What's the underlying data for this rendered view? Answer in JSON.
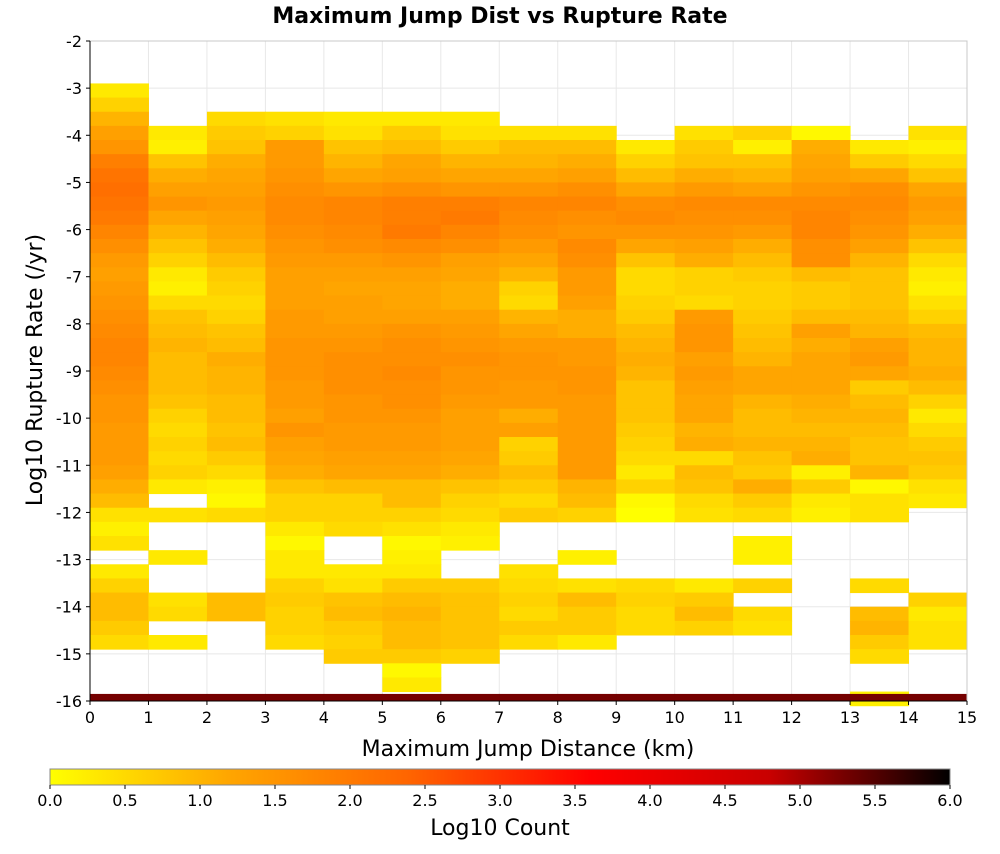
{
  "chart_data": {
    "type": "heatmap",
    "title": "Maximum Jump Dist vs Rupture Rate",
    "xlabel": "Maximum Jump Distance (km)",
    "ylabel": "Log10 Rupture Rate (/yr)",
    "xlim": [
      0,
      15
    ],
    "ylim": [
      -16,
      -2
    ],
    "x_ticks": [
      "0",
      "1",
      "2",
      "3",
      "4",
      "5",
      "6",
      "7",
      "8",
      "9",
      "10",
      "11",
      "12",
      "13",
      "14",
      "15"
    ],
    "y_ticks": [
      "-2",
      "-3",
      "-4",
      "-5",
      "-6",
      "-7",
      "-8",
      "-9",
      "-10",
      "-11",
      "-12",
      "-13",
      "-14",
      "-15",
      "-16"
    ],
    "x_bins": [
      0.5,
      1.5,
      2.5,
      3.5,
      4.5,
      5.5,
      6.5,
      7.5,
      8.5,
      9.5,
      10.5,
      11.5,
      12.5,
      13.5,
      14.5
    ],
    "y_bin_width": 0.3,
    "y_bin_centers": [
      -3.05,
      -3.35,
      -3.65,
      -3.95,
      -4.25,
      -4.55,
      -4.85,
      -5.15,
      -5.45,
      -5.75,
      -6.05,
      -6.35,
      -6.65,
      -6.95,
      -7.25,
      -7.55,
      -7.85,
      -8.15,
      -8.45,
      -8.75,
      -9.05,
      -9.35,
      -9.65,
      -9.95,
      -10.25,
      -10.55,
      -10.85,
      -11.15,
      -11.45,
      -11.75,
      -12.05,
      -12.35,
      -12.65,
      -12.95,
      -13.25,
      -13.55,
      -13.85,
      -14.15,
      -14.45,
      -14.75,
      -15.05,
      -15.35,
      -15.65,
      -15.95
    ],
    "z_log10_count": [
      [
        0.3,
        null,
        null,
        null,
        null,
        null,
        null,
        null,
        null,
        null,
        null,
        null,
        null,
        null,
        null
      ],
      [
        0.6,
        null,
        null,
        null,
        null,
        null,
        null,
        null,
        null,
        null,
        null,
        null,
        null,
        null,
        null
      ],
      [
        1.0,
        null,
        0.5,
        0.4,
        0.3,
        0.3,
        0.3,
        null,
        null,
        null,
        null,
        null,
        null,
        null,
        null
      ],
      [
        1.3,
        0.3,
        0.7,
        0.6,
        0.4,
        0.7,
        0.4,
        0.4,
        0.4,
        null,
        0.4,
        0.6,
        0.1,
        null,
        0.4
      ],
      [
        1.5,
        0.2,
        0.8,
        1.4,
        0.8,
        0.9,
        0.7,
        0.9,
        0.9,
        0.3,
        0.7,
        0.2,
        1.1,
        0.3,
        0.2
      ],
      [
        1.9,
        0.8,
        1.1,
        1.4,
        1.0,
        1.2,
        1.0,
        1.0,
        1.1,
        0.6,
        0.8,
        0.8,
        1.2,
        0.7,
        0.5
      ],
      [
        2.1,
        1.1,
        1.2,
        1.5,
        1.2,
        1.3,
        1.2,
        1.2,
        1.3,
        0.9,
        1.1,
        1.0,
        1.3,
        1.2,
        0.8
      ],
      [
        2.2,
        1.3,
        1.3,
        1.6,
        1.5,
        1.6,
        1.5,
        1.5,
        1.6,
        1.2,
        1.4,
        1.3,
        1.5,
        1.6,
        1.2
      ],
      [
        2.1,
        1.5,
        1.4,
        1.7,
        1.8,
        1.9,
        1.9,
        1.8,
        1.8,
        1.6,
        1.7,
        1.7,
        1.7,
        1.7,
        1.4
      ],
      [
        2.0,
        1.2,
        1.3,
        1.7,
        1.8,
        1.9,
        2.0,
        1.7,
        1.6,
        1.7,
        1.6,
        1.6,
        1.8,
        1.6,
        1.3
      ],
      [
        1.8,
        1.0,
        1.2,
        1.6,
        1.7,
        2.0,
        1.8,
        1.6,
        1.5,
        1.5,
        1.5,
        1.4,
        1.8,
        1.5,
        1.1
      ],
      [
        1.6,
        0.8,
        1.1,
        1.5,
        1.6,
        1.7,
        1.6,
        1.4,
        1.7,
        1.2,
        1.3,
        1.1,
        1.6,
        1.3,
        0.8
      ],
      [
        1.4,
        0.6,
        0.9,
        1.4,
        1.4,
        1.5,
        1.3,
        1.2,
        1.6,
        0.8,
        1.1,
        0.9,
        1.6,
        1.0,
        0.5
      ],
      [
        1.3,
        0.3,
        0.7,
        1.3,
        1.3,
        1.3,
        1.2,
        1.0,
        1.4,
        0.5,
        0.6,
        0.7,
        0.9,
        0.8,
        0.3
      ],
      [
        1.4,
        0.2,
        0.6,
        1.3,
        1.2,
        1.2,
        1.1,
        0.6,
        1.4,
        0.5,
        0.6,
        0.6,
        0.7,
        0.8,
        0.2
      ],
      [
        1.5,
        0.5,
        0.5,
        1.3,
        1.3,
        1.2,
        1.1,
        0.5,
        1.3,
        0.6,
        0.5,
        0.6,
        0.7,
        0.8,
        0.4
      ],
      [
        1.6,
        0.8,
        0.6,
        1.4,
        1.3,
        1.3,
        1.3,
        1.0,
        1.1,
        0.7,
        1.4,
        0.7,
        0.9,
        0.9,
        0.6
      ],
      [
        1.7,
        0.9,
        0.8,
        1.4,
        1.4,
        1.5,
        1.4,
        1.2,
        1.1,
        0.9,
        1.5,
        0.8,
        1.3,
        1.0,
        0.9
      ],
      [
        1.8,
        1.0,
        0.9,
        1.5,
        1.5,
        1.6,
        1.5,
        1.4,
        1.4,
        1.0,
        1.5,
        0.9,
        1.1,
        1.3,
        1.0
      ],
      [
        1.8,
        0.9,
        1.1,
        1.5,
        1.6,
        1.6,
        1.6,
        1.5,
        1.4,
        1.1,
        1.3,
        1.0,
        1.2,
        1.4,
        1.0
      ],
      [
        1.7,
        0.9,
        1.0,
        1.5,
        1.6,
        1.7,
        1.5,
        1.5,
        1.5,
        1.0,
        1.4,
        1.2,
        1.2,
        1.2,
        1.1
      ],
      [
        1.6,
        0.9,
        1.0,
        1.4,
        1.6,
        1.6,
        1.5,
        1.4,
        1.5,
        0.8,
        1.3,
        1.2,
        1.2,
        0.7,
        0.9
      ],
      [
        1.5,
        0.8,
        0.9,
        1.4,
        1.5,
        1.6,
        1.4,
        1.4,
        1.4,
        0.8,
        1.2,
        1.0,
        1.1,
        0.9,
        0.6
      ],
      [
        1.5,
        0.6,
        0.9,
        1.3,
        1.5,
        1.5,
        1.3,
        1.1,
        1.4,
        0.8,
        1.2,
        0.9,
        1.0,
        1.0,
        0.3
      ],
      [
        1.4,
        0.5,
        0.8,
        1.5,
        1.4,
        1.4,
        1.3,
        1.3,
        1.4,
        0.7,
        1.0,
        0.9,
        0.9,
        0.9,
        0.5
      ],
      [
        1.4,
        0.6,
        0.9,
        1.3,
        1.4,
        1.4,
        1.3,
        0.6,
        1.4,
        0.6,
        1.1,
        1.0,
        1.0,
        0.8,
        0.7
      ],
      [
        1.4,
        0.5,
        0.7,
        1.2,
        1.3,
        1.3,
        1.2,
        0.7,
        1.4,
        0.5,
        0.5,
        0.8,
        1.1,
        0.8,
        0.8
      ],
      [
        1.3,
        0.6,
        0.5,
        1.1,
        1.2,
        1.2,
        1.1,
        0.9,
        1.4,
        0.3,
        0.9,
        0.7,
        0.2,
        1.0,
        0.7
      ],
      [
        1.1,
        0.3,
        0.2,
        0.8,
        0.9,
        0.9,
        0.8,
        0.7,
        1.0,
        0.6,
        0.8,
        1.1,
        0.7,
        0.1,
        0.4
      ],
      [
        0.9,
        null,
        0.1,
        0.6,
        0.6,
        0.9,
        0.6,
        0.5,
        0.9,
        0.1,
        0.5,
        0.7,
        0.3,
        0.4,
        0.3
      ],
      [
        0.4,
        0.4,
        0.5,
        0.6,
        0.6,
        0.6,
        0.5,
        0.7,
        0.6,
        0.0,
        0.4,
        0.5,
        0.2,
        0.4,
        null
      ],
      [
        0.2,
        null,
        null,
        0.3,
        0.5,
        0.4,
        0.3,
        null,
        null,
        null,
        null,
        null,
        null,
        null,
        null
      ],
      [
        0.4,
        null,
        null,
        0.1,
        null,
        0.1,
        0.2,
        null,
        null,
        null,
        null,
        0.2,
        null,
        null,
        null
      ],
      [
        null,
        0.3,
        null,
        0.3,
        null,
        0.2,
        null,
        null,
        0.2,
        null,
        null,
        0.2,
        null,
        null,
        null
      ],
      [
        0.3,
        null,
        null,
        0.3,
        0.3,
        0.3,
        null,
        0.4,
        null,
        null,
        null,
        null,
        null,
        null,
        null
      ],
      [
        0.6,
        null,
        null,
        0.6,
        0.4,
        0.7,
        0.7,
        0.5,
        0.4,
        0.5,
        0.3,
        0.6,
        null,
        0.5,
        null
      ],
      [
        0.9,
        0.4,
        0.9,
        0.7,
        0.8,
        0.9,
        0.8,
        0.6,
        0.9,
        0.6,
        0.7,
        null,
        null,
        null,
        0.6
      ],
      [
        0.9,
        0.5,
        0.9,
        0.6,
        0.9,
        1.0,
        0.8,
        0.5,
        0.7,
        0.5,
        0.9,
        0.5,
        null,
        0.9,
        0.3
      ],
      [
        0.7,
        null,
        null,
        0.6,
        0.7,
        0.9,
        0.8,
        0.7,
        0.7,
        0.5,
        0.6,
        0.4,
        null,
        1.0,
        0.4
      ],
      [
        0.5,
        0.3,
        null,
        0.5,
        0.6,
        0.9,
        0.8,
        0.5,
        0.3,
        null,
        null,
        null,
        null,
        0.7,
        0.4
      ],
      [
        null,
        null,
        null,
        null,
        0.7,
        0.7,
        0.6,
        null,
        null,
        null,
        null,
        null,
        null,
        0.5,
        null
      ],
      [
        null,
        null,
        null,
        null,
        null,
        0.1,
        null,
        null,
        null,
        null,
        null,
        null,
        null,
        null,
        null
      ],
      [
        null,
        null,
        null,
        null,
        null,
        0.3,
        null,
        null,
        null,
        null,
        null,
        null,
        null,
        null,
        null
      ],
      [
        null,
        null,
        null,
        null,
        null,
        null,
        null,
        null,
        null,
        null,
        null,
        null,
        null,
        0.2,
        null
      ]
    ],
    "bottom_strip_log10_count": [
      5.3,
      5.3,
      5.3,
      5.3,
      5.3,
      5.3,
      5.3,
      5.3,
      5.3,
      5.3,
      5.3,
      5.3,
      5.3,
      5.3,
      5.3
    ],
    "colorbar": {
      "label": "Log10 Count",
      "range": [
        0,
        6
      ],
      "ticks": [
        "0.0",
        "0.5",
        "1.0",
        "1.5",
        "2.0",
        "2.5",
        "3.0",
        "3.5",
        "4.0",
        "4.5",
        "5.0",
        "5.5",
        "6.0"
      ],
      "colors": [
        "#ffff00",
        "#ffa500",
        "#ff6400",
        "#ff0000",
        "#c80000",
        "#000000"
      ]
    },
    "grid": true,
    "legend": "colorbar-bottom"
  }
}
